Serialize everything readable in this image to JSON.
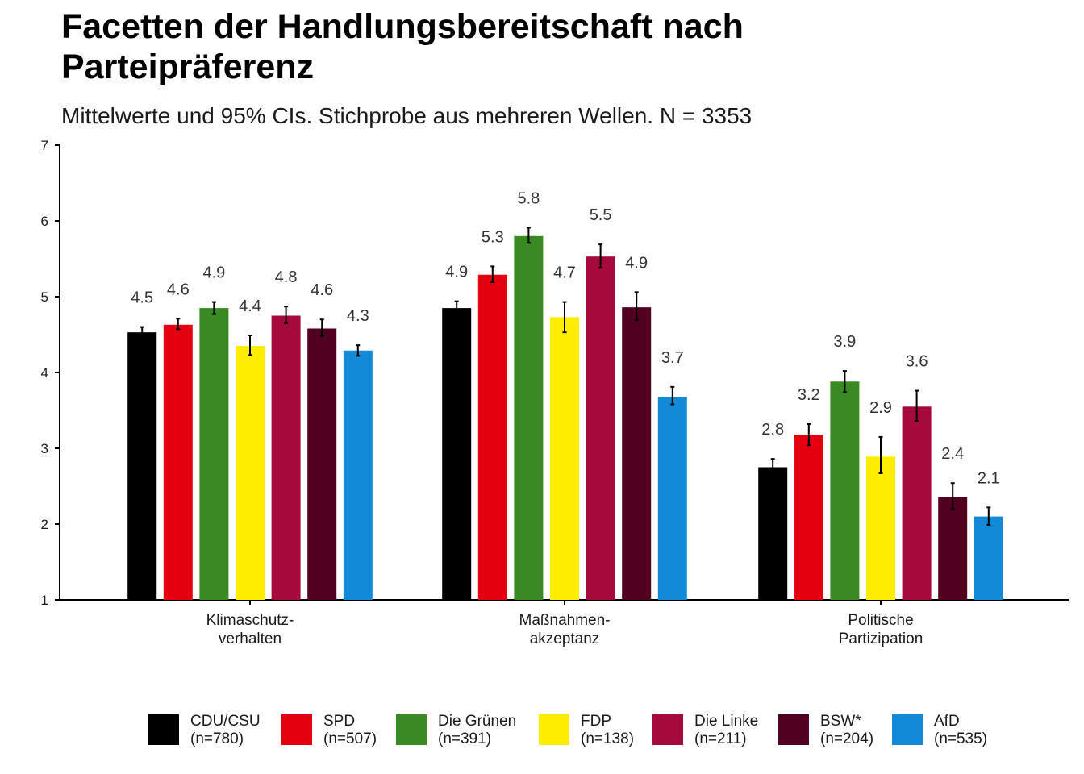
{
  "title": "Facetten der Handlungsbereitschaft nach\nParteipräferenz",
  "subtitle": "Mittelwerte und 95% CIs. Stichprobe aus mehreren Wellen. N = 3353",
  "colors": {
    "CDU/CSU": "#000000",
    "SPD": "#e3000f",
    "Die Grünen": "#3a8a24",
    "FDP": "#ffed00",
    "Die Linke": "#a60a3d",
    "BSW*": "#52001f",
    "AfD": "#128ad8"
  },
  "legend": [
    {
      "name": "CDU/CSU",
      "n": "(n=780)",
      "color": "#000000"
    },
    {
      "name": "SPD",
      "n": "(n=507)",
      "color": "#e3000f"
    },
    {
      "name": "Die Grünen",
      "n": "(n=391)",
      "color": "#3a8a24"
    },
    {
      "name": "FDP",
      "n": "(n=138)",
      "color": "#ffed00"
    },
    {
      "name": "Die Linke",
      "n": "(n=211)",
      "color": "#a60a3d"
    },
    {
      "name": "BSW*",
      "n": "(n=204)",
      "color": "#52001f"
    },
    {
      "name": "AfD",
      "n": "(n=535)",
      "color": "#128ad8"
    }
  ],
  "chart_data": {
    "type": "bar",
    "title": "Facetten der Handlungsbereitschaft nach Parteipräferenz",
    "subtitle": "Mittelwerte und 95% CIs. Stichprobe aus mehreren Wellen. N = 3353",
    "categories": [
      "Klimaschutz-\nverhalten",
      "Maßnahmen-\nakzeptanz",
      "Politische\nPartizipation"
    ],
    "ylim": [
      1,
      7
    ],
    "yticks": [
      1,
      2,
      3,
      4,
      5,
      6,
      7
    ],
    "grid": false,
    "legend_position": "bottom",
    "series": [
      {
        "name": "CDU/CSU",
        "values": [
          4.53,
          4.85,
          2.75
        ],
        "labels": [
          "4.5",
          "4.9",
          "2.8"
        ],
        "ci_low": [
          4.47,
          4.76,
          2.64
        ],
        "ci_high": [
          4.6,
          4.94,
          2.86
        ]
      },
      {
        "name": "SPD",
        "values": [
          4.63,
          5.29,
          3.18
        ],
        "labels": [
          "4.6",
          "5.3",
          "3.2"
        ],
        "ci_low": [
          4.57,
          5.19,
          3.04
        ],
        "ci_high": [
          4.71,
          5.4,
          3.32
        ]
      },
      {
        "name": "Die Grünen",
        "values": [
          4.85,
          5.8,
          3.88
        ],
        "labels": [
          "4.9",
          "5.8",
          "3.9"
        ],
        "ci_low": [
          4.77,
          5.71,
          3.74
        ],
        "ci_high": [
          4.93,
          5.91,
          4.02
        ]
      },
      {
        "name": "FDP",
        "values": [
          4.35,
          4.73,
          2.89
        ],
        "labels": [
          "4.4",
          "4.7",
          "2.9"
        ],
        "ci_low": [
          4.23,
          4.53,
          2.67
        ],
        "ci_high": [
          4.49,
          4.93,
          3.15
        ]
      },
      {
        "name": "Die Linke",
        "values": [
          4.75,
          5.53,
          3.55
        ],
        "labels": [
          "4.8",
          "5.5",
          "3.6"
        ],
        "ci_low": [
          4.65,
          5.38,
          3.36
        ],
        "ci_high": [
          4.87,
          5.69,
          3.76
        ]
      },
      {
        "name": "BSW*",
        "values": [
          4.58,
          4.86,
          2.36
        ],
        "labels": [
          "4.6",
          "4.9",
          "2.4"
        ],
        "ci_low": [
          4.48,
          4.69,
          2.2
        ],
        "ci_high": [
          4.7,
          5.06,
          2.54
        ]
      },
      {
        "name": "AfD",
        "values": [
          4.29,
          3.68,
          2.1
        ],
        "labels": [
          "4.3",
          "3.7",
          "2.1"
        ],
        "ci_low": [
          4.22,
          3.58,
          1.99
        ],
        "ci_high": [
          4.36,
          3.81,
          2.22
        ]
      }
    ]
  }
}
